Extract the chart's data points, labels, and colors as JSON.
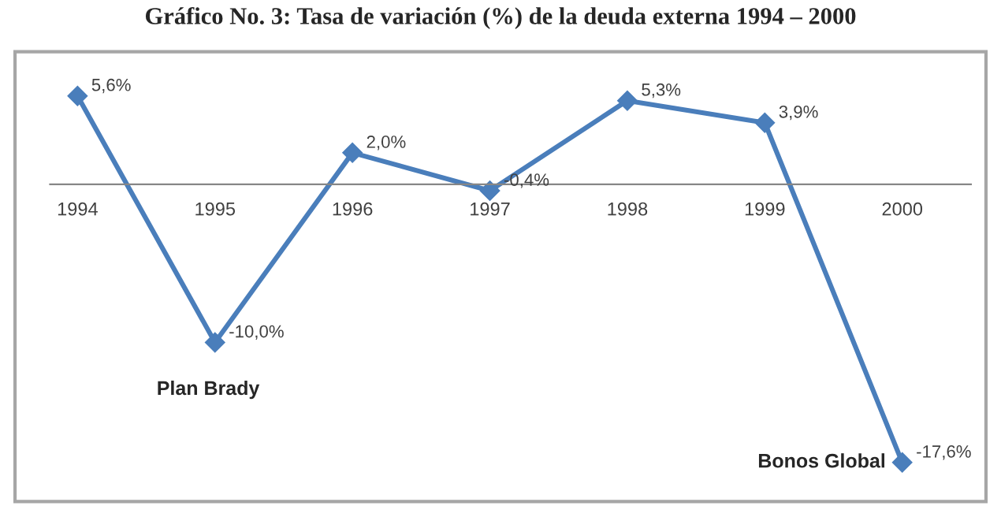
{
  "chart_data": {
    "type": "line",
    "title": "Gráfico No. 3: Tasa de variación (%) de la deuda externa 1994 – 2000",
    "categories": [
      "1994",
      "1995",
      "1996",
      "1997",
      "1998",
      "1999",
      "2000"
    ],
    "series": [
      {
        "color": "#4a7ebb",
        "values": [
          5.6,
          -10.0,
          2.0,
          -0.4,
          5.3,
          3.9,
          -17.6
        ],
        "value_labels": [
          "5,6%",
          "-10,0%",
          "2,0%",
          "-0,4%",
          "5,3%",
          "3,9%",
          "-17,6%"
        ]
      }
    ],
    "marker": "diamond",
    "line_style": "solid",
    "grid": false,
    "legend": false,
    "annotations": [
      {
        "text": "Plan Brady",
        "x": "1995",
        "y": -10.0
      },
      {
        "text": "Bonos Global",
        "x": "2000",
        "y": -17.6
      }
    ]
  }
}
